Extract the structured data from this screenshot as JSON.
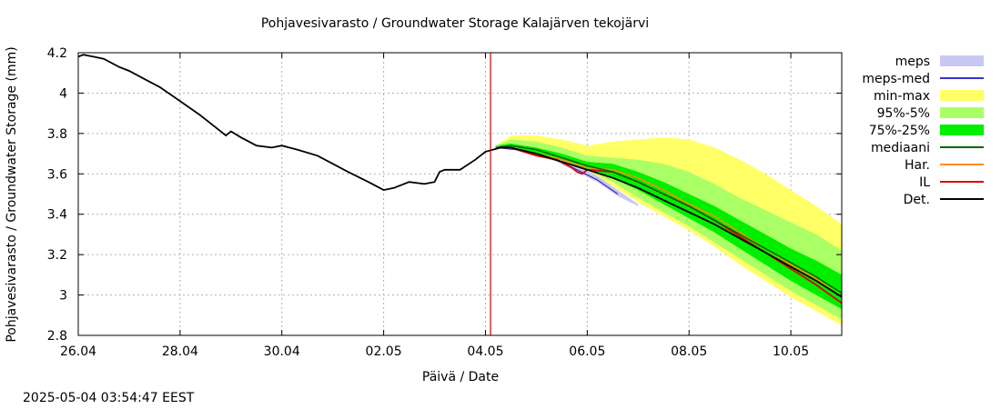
{
  "chart_data": {
    "type": "area",
    "title": "Pohjavesivarasto / Groundwater Storage   Kalajärven tekojärvi",
    "xlabel": "Päivä / Date",
    "ylabel": "Pohjavesivarasto / Groundwater Storage (mm)",
    "timestamp": "2025-05-04 03:54:47 EEST",
    "xlim": [
      0,
      15
    ],
    "ylim": [
      2.8,
      4.2
    ],
    "x_ticks": [
      {
        "x": 0,
        "label": "26.04"
      },
      {
        "x": 2,
        "label": "28.04"
      },
      {
        "x": 4,
        "label": "30.04"
      },
      {
        "x": 6,
        "label": "02.05"
      },
      {
        "x": 8,
        "label": "04.05"
      },
      {
        "x": 10,
        "label": "06.05"
      },
      {
        "x": 12,
        "label": "08.05"
      },
      {
        "x": 14,
        "label": "10.05"
      }
    ],
    "y_ticks": [
      {
        "y": 2.8,
        "label": "2.8"
      },
      {
        "y": 3.0,
        "label": "3"
      },
      {
        "y": 3.2,
        "label": "3.2"
      },
      {
        "y": 3.4,
        "label": "3.4"
      },
      {
        "y": 3.6,
        "label": "3.6"
      },
      {
        "y": 3.8,
        "label": "3.8"
      },
      {
        "y": 4.0,
        "label": "4"
      },
      {
        "y": 4.2,
        "label": "4.2"
      }
    ],
    "grid": true,
    "forecast_line_x": 8.1,
    "colors": {
      "meps": "#c8c8f5",
      "meps_med": "#3333cc",
      "min_max": "#ffff66",
      "p95_5": "#aaff66",
      "p75_25": "#00ee00",
      "median": "#006600",
      "har": "#ff8c00",
      "il": "#dd0000",
      "det": "#000000",
      "vline": "#cc0000",
      "grid": "#b0b0b0"
    },
    "legend": [
      {
        "key": "meps",
        "label": "meps",
        "kind": "band"
      },
      {
        "key": "meps_med",
        "label": "meps-med",
        "kind": "line"
      },
      {
        "key": "min_max",
        "label": "min-max",
        "kind": "band"
      },
      {
        "key": "p95_5",
        "label": "95%-5%",
        "kind": "band"
      },
      {
        "key": "p75_25",
        "label": "75%-25%",
        "kind": "band"
      },
      {
        "key": "median",
        "label": "mediaani",
        "kind": "line"
      },
      {
        "key": "har",
        "label": "Har.",
        "kind": "line"
      },
      {
        "key": "il",
        "label": "IL",
        "kind": "line"
      },
      {
        "key": "det",
        "label": "Det.",
        "kind": "line"
      }
    ],
    "series": {
      "min_max": {
        "x": [
          8.2,
          8.5,
          9.0,
          9.5,
          10.0,
          10.5,
          11.0,
          11.5,
          12.0,
          12.5,
          13.0,
          13.5,
          14.0,
          14.5,
          15.0
        ],
        "upper": [
          3.74,
          3.79,
          3.79,
          3.77,
          3.74,
          3.76,
          3.77,
          3.78,
          3.77,
          3.73,
          3.67,
          3.6,
          3.52,
          3.44,
          3.35
        ],
        "lower": [
          3.73,
          3.73,
          3.71,
          3.67,
          3.62,
          3.54,
          3.46,
          3.39,
          3.32,
          3.24,
          3.15,
          3.07,
          2.99,
          2.92,
          2.85
        ]
      },
      "p95_5": {
        "x": [
          8.2,
          8.5,
          9.0,
          9.5,
          10.0,
          10.5,
          11.0,
          11.5,
          12.0,
          12.5,
          13.0,
          13.5,
          14.0,
          14.5,
          15.0
        ],
        "upper": [
          3.74,
          3.77,
          3.76,
          3.73,
          3.69,
          3.68,
          3.67,
          3.65,
          3.61,
          3.55,
          3.48,
          3.42,
          3.36,
          3.3,
          3.22
        ],
        "lower": [
          3.73,
          3.73,
          3.71,
          3.67,
          3.62,
          3.56,
          3.48,
          3.41,
          3.34,
          3.26,
          3.18,
          3.1,
          3.02,
          2.95,
          2.88
        ]
      },
      "p75_25": {
        "x": [
          8.2,
          8.5,
          9.0,
          9.5,
          10.0,
          10.5,
          11.0,
          11.5,
          12.0,
          12.5,
          13.0,
          13.5,
          14.0,
          14.5,
          15.0
        ],
        "upper": [
          3.74,
          3.75,
          3.73,
          3.7,
          3.66,
          3.65,
          3.61,
          3.56,
          3.5,
          3.44,
          3.37,
          3.3,
          3.23,
          3.17,
          3.1
        ],
        "lower": [
          3.73,
          3.73,
          3.7,
          3.67,
          3.62,
          3.58,
          3.52,
          3.45,
          3.38,
          3.31,
          3.23,
          3.15,
          3.07,
          3.0,
          2.93
        ]
      },
      "meps": {
        "x": [
          8.2,
          8.6,
          9.0,
          9.4,
          9.8,
          10.2,
          10.6,
          11.0
        ],
        "upper": [
          3.74,
          3.73,
          3.7,
          3.68,
          3.64,
          3.59,
          3.52,
          3.45
        ],
        "lower": [
          3.73,
          3.72,
          3.69,
          3.66,
          3.61,
          3.56,
          3.49,
          3.44
        ]
      },
      "meps_med": {
        "x": [
          8.2,
          8.6,
          9.0,
          9.4,
          9.8,
          10.2,
          10.6
        ],
        "y": [
          3.73,
          3.72,
          3.69,
          3.67,
          3.62,
          3.57,
          3.5
        ]
      },
      "median": {
        "x": [
          8.2,
          8.5,
          9.0,
          9.5,
          10.0,
          10.5,
          11.0,
          11.5,
          12.0,
          12.5,
          13.0,
          13.5,
          14.0,
          14.5,
          15.0
        ],
        "y": [
          3.73,
          3.74,
          3.72,
          3.68,
          3.64,
          3.61,
          3.56,
          3.5,
          3.44,
          3.37,
          3.3,
          3.23,
          3.16,
          3.09,
          3.01
        ]
      },
      "har": {
        "x": [
          8.2,
          8.5,
          9.0,
          9.5,
          10.0,
          10.5,
          11.0,
          11.5,
          12.0,
          12.5,
          13.0,
          13.5,
          14.0,
          14.5,
          15.0
        ],
        "y": [
          3.73,
          3.73,
          3.7,
          3.67,
          3.63,
          3.62,
          3.58,
          3.52,
          3.45,
          3.39,
          3.31,
          3.23,
          3.15,
          3.08,
          2.99
        ]
      },
      "il": {
        "x": [
          8.2,
          8.5,
          9.0,
          9.4,
          9.7,
          9.8,
          9.9,
          10.0,
          10.5,
          11.0,
          11.5,
          12.0,
          12.5,
          13.0,
          13.5,
          14.0,
          14.5,
          15.0
        ],
        "y": [
          3.73,
          3.73,
          3.69,
          3.67,
          3.63,
          3.61,
          3.6,
          3.62,
          3.61,
          3.56,
          3.5,
          3.44,
          3.37,
          3.29,
          3.21,
          3.13,
          3.05,
          2.96
        ]
      },
      "det": {
        "x": [
          0.0,
          0.1,
          0.3,
          0.5,
          0.8,
          1.0,
          1.3,
          1.6,
          2.0,
          2.4,
          2.8,
          2.9,
          3.0,
          3.2,
          3.5,
          3.8,
          4.0,
          4.3,
          4.7,
          5.0,
          5.3,
          5.7,
          6.0,
          6.2,
          6.5,
          6.8,
          7.0,
          7.1,
          7.2,
          7.5,
          7.8,
          8.0,
          8.3,
          8.5,
          9.0,
          9.5,
          10.0,
          10.5,
          11.0,
          11.5,
          12.0,
          12.5,
          13.0,
          13.5,
          14.0,
          14.5,
          15.0
        ],
        "y": [
          4.18,
          4.19,
          4.18,
          4.17,
          4.13,
          4.11,
          4.07,
          4.03,
          3.96,
          3.89,
          3.81,
          3.79,
          3.81,
          3.78,
          3.74,
          3.73,
          3.74,
          3.72,
          3.69,
          3.65,
          3.61,
          3.56,
          3.52,
          3.53,
          3.56,
          3.55,
          3.56,
          3.61,
          3.62,
          3.62,
          3.67,
          3.71,
          3.73,
          3.73,
          3.7,
          3.66,
          3.62,
          3.58,
          3.53,
          3.47,
          3.41,
          3.35,
          3.28,
          3.21,
          3.14,
          3.07,
          2.99
        ]
      }
    }
  }
}
